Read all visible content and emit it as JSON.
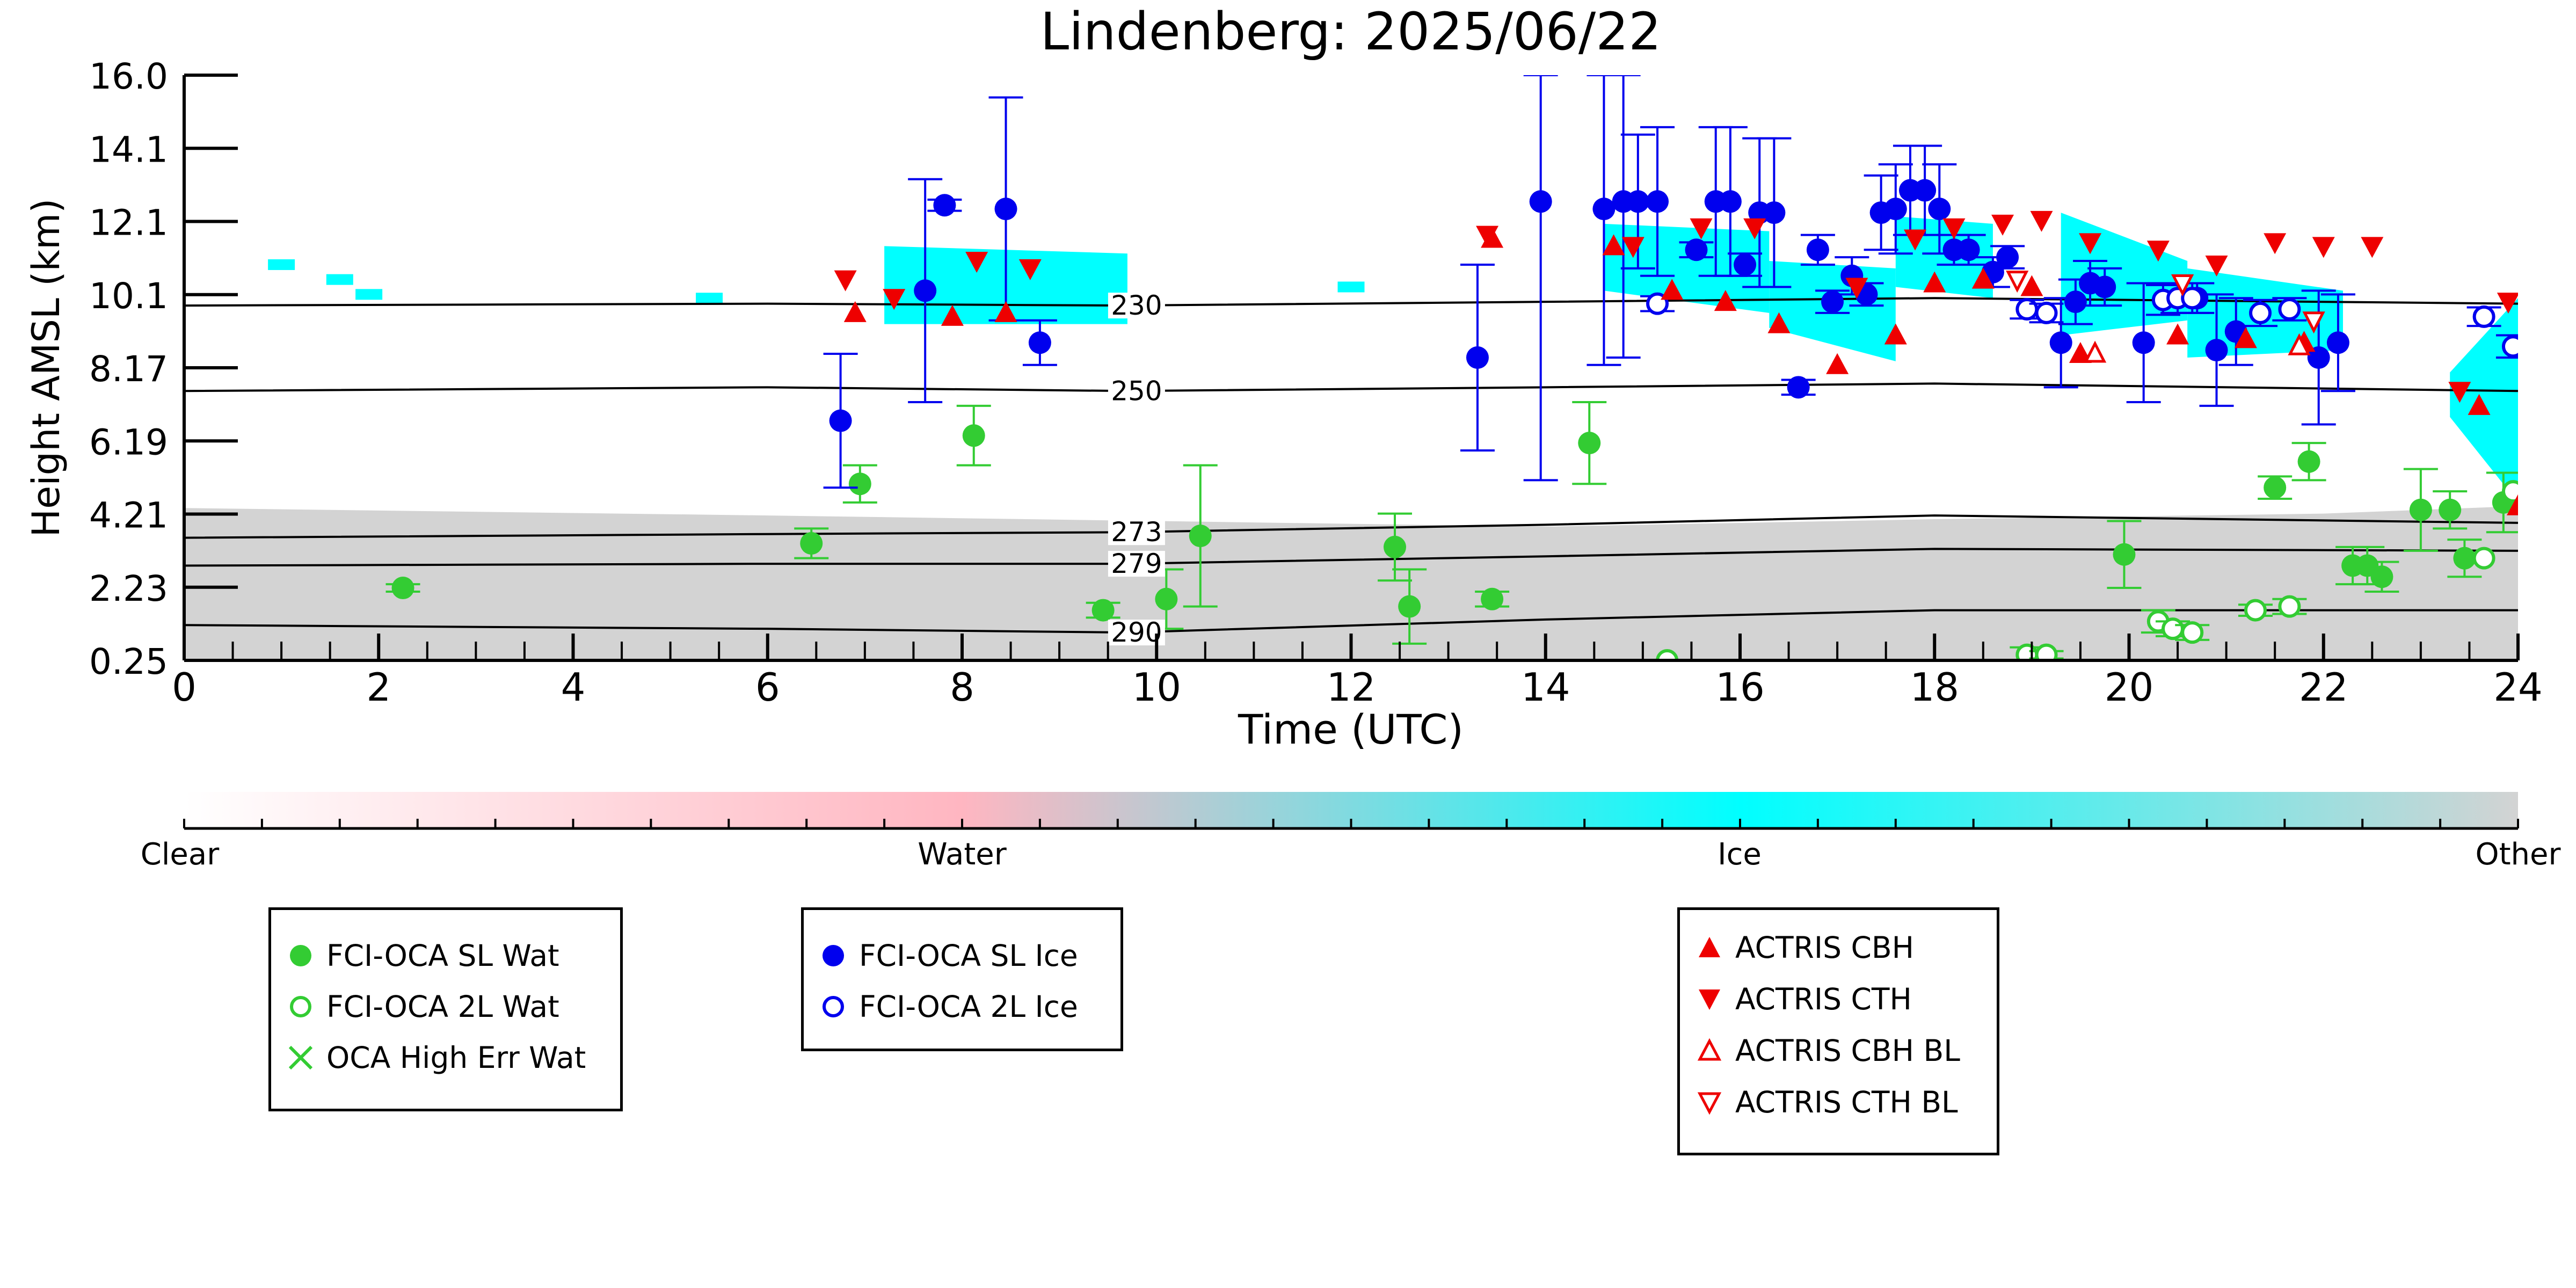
{
  "chart_data": {
    "type": "scatter",
    "title": "Lindenberg: 2025/06/22",
    "xlabel": "Time (UTC)",
    "ylabel": "Height AMSL (km)",
    "xlim": [
      0,
      24
    ],
    "ylim": [
      0.25,
      16.0
    ],
    "x_ticks": [
      "0",
      "2",
      "4",
      "6",
      "8",
      "10",
      "12",
      "14",
      "16",
      "18",
      "20",
      "22",
      "24"
    ],
    "y_ticks": [
      "0.25",
      "2.23",
      "4.21",
      "6.19",
      "8.17",
      "10.1",
      "12.1",
      "14.1",
      "16.0"
    ],
    "colorbar": {
      "labels": [
        "Clear",
        "Water",
        "Ice",
        "Other"
      ],
      "colors": [
        "#ffffff",
        "#ffb6c1",
        "#00ffff",
        "#d3d3d3"
      ]
    },
    "isotherms": [
      {
        "label": "230",
        "points": [
          [
            0,
            9.8
          ],
          [
            6,
            9.85
          ],
          [
            9.7,
            9.8
          ],
          [
            14,
            9.9
          ],
          [
            18,
            10.0
          ],
          [
            24,
            9.85
          ]
        ]
      },
      {
        "label": "250",
        "points": [
          [
            0,
            7.5
          ],
          [
            6,
            7.6
          ],
          [
            9.7,
            7.5
          ],
          [
            14,
            7.6
          ],
          [
            18,
            7.7
          ],
          [
            24,
            7.5
          ]
        ]
      },
      {
        "label": "273",
        "points": [
          [
            0,
            3.55
          ],
          [
            6,
            3.65
          ],
          [
            9.7,
            3.7
          ],
          [
            14,
            3.9
          ],
          [
            18,
            4.15
          ],
          [
            24,
            3.95
          ]
        ]
      },
      {
        "label": "279",
        "points": [
          [
            0,
            2.8
          ],
          [
            6,
            2.85
          ],
          [
            9.7,
            2.85
          ],
          [
            14,
            3.05
          ],
          [
            18,
            3.25
          ],
          [
            24,
            3.2
          ]
        ]
      },
      {
        "label": "290",
        "points": [
          [
            0,
            1.2
          ],
          [
            6,
            1.1
          ],
          [
            9.7,
            1.0
          ],
          [
            14,
            1.35
          ],
          [
            18,
            1.6
          ],
          [
            24,
            1.6
          ]
        ]
      }
    ],
    "series": [
      {
        "name": "FCI-OCA SL Wat",
        "color": "#33cc33",
        "marker": "filled-circle",
        "points": [
          [
            2.25,
            2.2
          ],
          [
            6.45,
            3.4
          ],
          [
            6.95,
            5.0
          ],
          [
            8.12,
            6.3
          ],
          [
            9.45,
            1.6
          ],
          [
            10.1,
            1.9
          ],
          [
            10.45,
            3.6
          ],
          [
            12.45,
            3.3
          ],
          [
            12.6,
            1.7
          ],
          [
            13.45,
            1.9
          ],
          [
            14.45,
            6.1
          ],
          [
            19.95,
            3.1
          ],
          [
            21.5,
            4.9
          ],
          [
            21.85,
            5.6
          ],
          [
            22.3,
            2.8
          ],
          [
            22.45,
            2.8
          ],
          [
            22.6,
            2.5
          ],
          [
            23.0,
            4.3
          ],
          [
            23.3,
            4.3
          ],
          [
            23.45,
            3.0
          ],
          [
            23.85,
            4.5
          ]
        ],
        "err": [
          0.1,
          0.4,
          0.5,
          0.8,
          0.2,
          0.8,
          1.9,
          0.9,
          1.0,
          0.2,
          1.1,
          0.9,
          0.3,
          0.5,
          0.5,
          0.5,
          0.4,
          1.1,
          0.5,
          0.5,
          0.8
        ]
      },
      {
        "name": "FCI-OCA 2L Wat",
        "color": "#33cc33",
        "marker": "open-circle",
        "points": [
          [
            15.25,
            0.25
          ],
          [
            18.95,
            0.4
          ],
          [
            19.15,
            0.4
          ],
          [
            20.3,
            1.3
          ],
          [
            20.45,
            1.1
          ],
          [
            20.65,
            1.0
          ],
          [
            21.3,
            1.6
          ],
          [
            21.65,
            1.7
          ],
          [
            23.65,
            3.0
          ],
          [
            23.95,
            4.8
          ]
        ],
        "err": [
          0,
          0.2,
          0.1,
          0.3,
          0.2,
          0.2,
          0.15,
          0.2,
          0,
          0
        ]
      },
      {
        "name": "OCA High Err Wat",
        "color": "#33cc33",
        "marker": "x",
        "points": []
      },
      {
        "name": "FCI-OCA SL Ice",
        "color": "#0000ee",
        "marker": "filled-circle",
        "points": [
          [
            6.75,
            6.7
          ],
          [
            7.62,
            10.2
          ],
          [
            7.82,
            12.5
          ],
          [
            8.45,
            12.4
          ],
          [
            8.8,
            8.8
          ],
          [
            13.3,
            8.4
          ],
          [
            13.95,
            12.6
          ],
          [
            14.6,
            12.4
          ],
          [
            14.8,
            12.6
          ],
          [
            14.95,
            12.6
          ],
          [
            15.15,
            12.6
          ],
          [
            15.55,
            11.3
          ],
          [
            15.75,
            12.6
          ],
          [
            15.9,
            12.6
          ],
          [
            16.05,
            10.9
          ],
          [
            16.2,
            12.3
          ],
          [
            16.35,
            12.3
          ],
          [
            16.6,
            7.6
          ],
          [
            16.8,
            11.3
          ],
          [
            16.95,
            9.9
          ],
          [
            17.15,
            10.6
          ],
          [
            17.3,
            10.1
          ],
          [
            17.45,
            12.3
          ],
          [
            17.6,
            12.4
          ],
          [
            17.75,
            12.9
          ],
          [
            17.9,
            12.9
          ],
          [
            18.05,
            12.4
          ],
          [
            18.2,
            11.3
          ],
          [
            18.35,
            11.3
          ],
          [
            18.6,
            10.7
          ],
          [
            18.75,
            11.1
          ],
          [
            19.3,
            8.8
          ],
          [
            19.45,
            9.9
          ],
          [
            19.6,
            10.4
          ],
          [
            19.75,
            10.3
          ],
          [
            20.15,
            8.8
          ],
          [
            20.7,
            10.0
          ],
          [
            20.9,
            8.6
          ],
          [
            21.1,
            9.1
          ],
          [
            21.95,
            8.4
          ],
          [
            22.15,
            8.8
          ]
        ],
        "err": [
          1.8,
          3.0,
          0.15,
          3.0,
          0.6,
          2.5,
          7.5,
          4.2,
          4.2,
          1.8,
          2.0,
          0.2,
          2.0,
          2.0,
          0.3,
          2.0,
          2.0,
          0.2,
          0.4,
          0.3,
          0.5,
          0.3,
          1.0,
          1.2,
          1.2,
          1.2,
          1.2,
          0.4,
          0.4,
          0.4,
          0.3,
          1.2,
          0.6,
          0.6,
          0.5,
          1.6,
          0.4,
          1.5,
          0.9,
          1.8,
          1.3
        ]
      },
      {
        "name": "FCI-OCA 2L Ice",
        "color": "#0000ee",
        "marker": "open-circle",
        "points": [
          [
            15.15,
            9.85
          ],
          [
            18.95,
            9.7
          ],
          [
            19.15,
            9.6
          ],
          [
            20.35,
            9.95
          ],
          [
            20.5,
            10.0
          ],
          [
            20.65,
            10.0
          ],
          [
            21.35,
            9.6
          ],
          [
            21.65,
            9.7
          ],
          [
            23.65,
            9.5
          ],
          [
            23.95,
            8.7
          ]
        ],
        "err": [
          0.2,
          0.25,
          0.25,
          0.4,
          0.4,
          0.4,
          0.35,
          0.3,
          0.25,
          0.3
        ]
      },
      {
        "name": "ACTRIS CBH",
        "color": "#ee0000",
        "marker": "triangle-up",
        "points": [
          [
            6.9,
            9.6
          ],
          [
            7.9,
            9.5
          ],
          [
            8.45,
            9.6
          ],
          [
            13.45,
            11.6
          ],
          [
            14.7,
            11.4
          ],
          [
            15.3,
            10.2
          ],
          [
            15.85,
            9.9
          ],
          [
            16.4,
            9.3
          ],
          [
            17.0,
            8.2
          ],
          [
            17.6,
            9.0
          ],
          [
            18.0,
            10.4
          ],
          [
            18.5,
            10.5
          ],
          [
            19.0,
            10.3
          ],
          [
            19.5,
            8.5
          ],
          [
            20.5,
            9.0
          ],
          [
            21.2,
            8.9
          ],
          [
            21.8,
            8.8
          ],
          [
            23.6,
            7.1
          ],
          [
            24.0,
            4.4
          ]
        ]
      },
      {
        "name": "ACTRIS CTH",
        "color": "#ee0000",
        "marker": "triangle-down",
        "points": [
          [
            6.8,
            10.5
          ],
          [
            7.3,
            10.0
          ],
          [
            8.15,
            11.0
          ],
          [
            8.7,
            10.8
          ],
          [
            13.4,
            11.7
          ],
          [
            14.9,
            11.4
          ],
          [
            15.6,
            11.9
          ],
          [
            16.15,
            11.9
          ],
          [
            17.2,
            10.3
          ],
          [
            17.8,
            11.6
          ],
          [
            18.2,
            11.9
          ],
          [
            18.7,
            12.0
          ],
          [
            19.1,
            12.1
          ],
          [
            19.6,
            11.5
          ],
          [
            20.3,
            11.3
          ],
          [
            20.9,
            10.9
          ],
          [
            21.5,
            11.5
          ],
          [
            22.0,
            11.4
          ],
          [
            22.5,
            11.4
          ],
          [
            23.4,
            7.5
          ],
          [
            23.9,
            9.9
          ]
        ]
      },
      {
        "name": "ACTRIS CBH BL",
        "color": "#ee0000",
        "marker": "open-triangle-up",
        "points": [
          [
            19.65,
            8.5
          ],
          [
            21.75,
            8.7
          ]
        ]
      },
      {
        "name": "ACTRIS CTH BL",
        "color": "#ee0000",
        "marker": "open-triangle-down",
        "points": [
          [
            18.85,
            10.5
          ],
          [
            20.55,
            10.4
          ],
          [
            21.9,
            9.4
          ]
        ]
      }
    ],
    "legend": {
      "groups": [
        [
          "FCI-OCA SL Wat",
          "FCI-OCA 2L Wat",
          "OCA High Err Wat"
        ],
        [
          "FCI-OCA SL Ice",
          "FCI-OCA 2L Ice"
        ],
        [
          "ACTRIS CBH",
          "ACTRIS CTH",
          "ACTRIS CBH BL",
          "ACTRIS CTH BL"
        ]
      ],
      "placement": "bottom"
    }
  }
}
